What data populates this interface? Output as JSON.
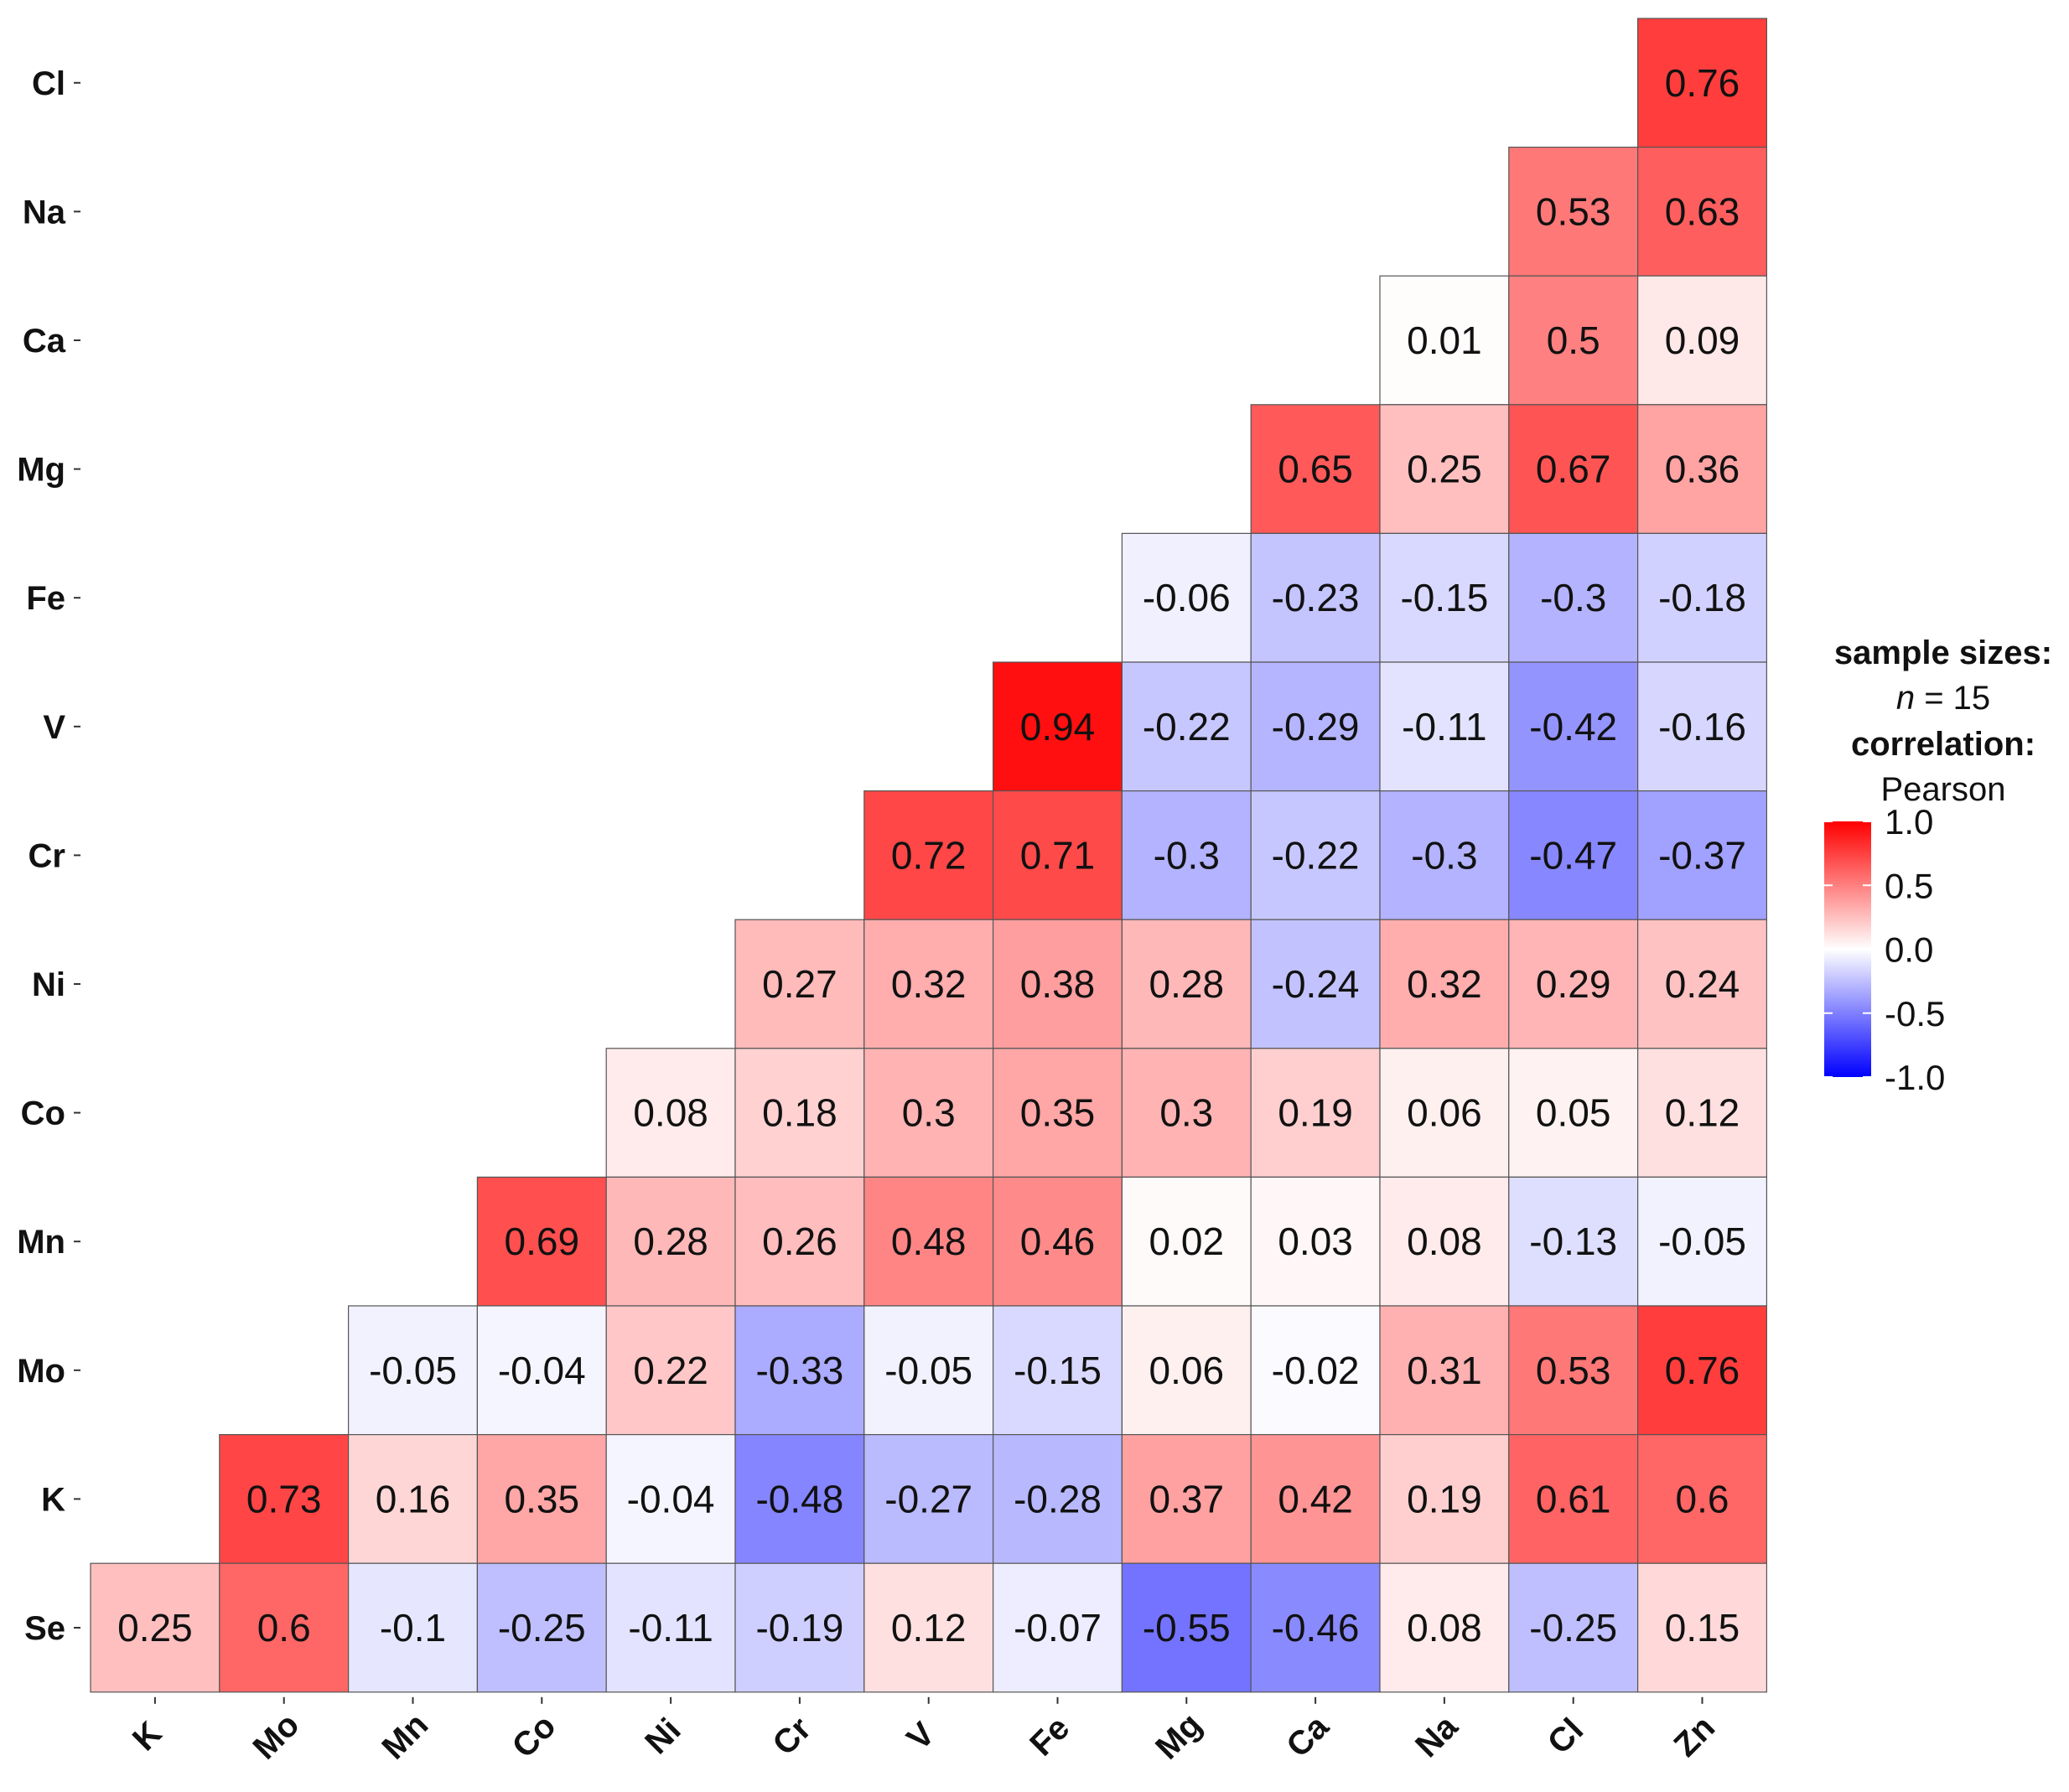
{
  "chart_data": {
    "type": "heatmap",
    "rows": [
      "Cl",
      "Na",
      "Ca",
      "Mg",
      "Fe",
      "V",
      "Cr",
      "Ni",
      "Co",
      "Mn",
      "Mo",
      "K",
      "Se"
    ],
    "cols": [
      "K",
      "Mo",
      "Mn",
      "Co",
      "Ni",
      "Cr",
      "V",
      "Fe",
      "Mg",
      "Ca",
      "Na",
      "Cl",
      "Zn"
    ],
    "values": [
      [
        null,
        null,
        null,
        null,
        null,
        null,
        null,
        null,
        null,
        null,
        null,
        null,
        0.76
      ],
      [
        null,
        null,
        null,
        null,
        null,
        null,
        null,
        null,
        null,
        null,
        null,
        0.53,
        0.63
      ],
      [
        null,
        null,
        null,
        null,
        null,
        null,
        null,
        null,
        null,
        null,
        0.01,
        0.5,
        0.09
      ],
      [
        null,
        null,
        null,
        null,
        null,
        null,
        null,
        null,
        null,
        0.65,
        0.25,
        0.67,
        0.36
      ],
      [
        null,
        null,
        null,
        null,
        null,
        null,
        null,
        null,
        -0.06,
        -0.23,
        -0.15,
        -0.3,
        -0.18
      ],
      [
        null,
        null,
        null,
        null,
        null,
        null,
        null,
        0.94,
        -0.22,
        -0.29,
        -0.11,
        -0.42,
        -0.16
      ],
      [
        null,
        null,
        null,
        null,
        null,
        null,
        0.72,
        0.71,
        -0.3,
        -0.22,
        -0.3,
        -0.47,
        -0.37
      ],
      [
        null,
        null,
        null,
        null,
        null,
        0.27,
        0.32,
        0.38,
        0.28,
        -0.24,
        0.32,
        0.29,
        0.24
      ],
      [
        null,
        null,
        null,
        null,
        0.08,
        0.18,
        0.3,
        0.35,
        0.3,
        0.19,
        0.06,
        0.05,
        0.12
      ],
      [
        null,
        null,
        null,
        0.69,
        0.28,
        0.26,
        0.48,
        0.46,
        0.02,
        0.03,
        0.08,
        -0.13,
        -0.05
      ],
      [
        null,
        null,
        -0.05,
        -0.04,
        0.22,
        -0.33,
        -0.05,
        -0.15,
        0.06,
        -0.02,
        0.31,
        0.53,
        0.76
      ],
      [
        null,
        0.73,
        0.16,
        0.35,
        -0.04,
        -0.48,
        -0.27,
        -0.28,
        0.37,
        0.42,
        0.19,
        0.61,
        0.6
      ],
      [
        0.25,
        0.6,
        -0.1,
        -0.25,
        -0.11,
        -0.19,
        0.12,
        -0.07,
        -0.55,
        -0.46,
        0.08,
        -0.25,
        0.15
      ]
    ],
    "labels": [
      [
        null,
        null,
        null,
        null,
        null,
        null,
        null,
        null,
        null,
        null,
        null,
        null,
        "0.76"
      ],
      [
        null,
        null,
        null,
        null,
        null,
        null,
        null,
        null,
        null,
        null,
        null,
        "0.53",
        "0.63"
      ],
      [
        null,
        null,
        null,
        null,
        null,
        null,
        null,
        null,
        null,
        null,
        "0.01",
        "0.5",
        "0.09"
      ],
      [
        null,
        null,
        null,
        null,
        null,
        null,
        null,
        null,
        null,
        "0.65",
        "0.25",
        "0.67",
        "0.36"
      ],
      [
        null,
        null,
        null,
        null,
        null,
        null,
        null,
        null,
        "-0.06",
        "-0.23",
        "-0.15",
        "-0.3",
        "-0.18"
      ],
      [
        null,
        null,
        null,
        null,
        null,
        null,
        null,
        "0.94",
        "-0.22",
        "-0.29",
        "-0.11",
        "-0.42",
        "-0.16"
      ],
      [
        null,
        null,
        null,
        null,
        null,
        null,
        "0.72",
        "0.71",
        "-0.3",
        "-0.22",
        "-0.3",
        "-0.47",
        "-0.37"
      ],
      [
        null,
        null,
        null,
        null,
        null,
        "0.27",
        "0.32",
        "0.38",
        "0.28",
        "-0.24",
        "0.32",
        "0.29",
        "0.24"
      ],
      [
        null,
        null,
        null,
        null,
        "0.08",
        "0.18",
        "0.3",
        "0.35",
        "0.3",
        "0.19",
        "0.06",
        "0.05",
        "0.12"
      ],
      [
        null,
        null,
        null,
        "0.69",
        "0.28",
        "0.26",
        "0.48",
        "0.46",
        "0.02",
        "0.03",
        "0.08",
        "-0.13",
        "-0.05"
      ],
      [
        null,
        null,
        "-0.05",
        "-0.04",
        "0.22",
        "-0.33",
        "-0.05",
        "-0.15",
        "0.06",
        "-0.02",
        "0.31",
        "0.53",
        "0.76"
      ],
      [
        null,
        "0.73",
        "0.16",
        "0.35",
        "-0.04",
        "-0.48",
        "-0.27",
        "-0.28",
        "0.37",
        "0.42",
        "0.19",
        "0.61",
        "0.6"
      ],
      [
        "0.25",
        "0.6",
        "-0.1",
        "-0.25",
        "-0.11",
        "-0.19",
        "0.12",
        "-0.07",
        "-0.55",
        "-0.46",
        "0.08",
        "-0.25",
        "0.15"
      ]
    ],
    "color_scale": {
      "low": "#0000ff",
      "mid": "#ffffff",
      "high": "#ff0000",
      "limits": [
        -1.0,
        1.0
      ]
    },
    "legend": {
      "heading_1": "sample sizes:",
      "n_symbol": "n",
      "n_text": " = 15",
      "heading_2": "correlation:",
      "method": "Pearson",
      "ticks": [
        "1.0",
        "0.5",
        "0.0",
        "-0.5",
        "-1.0"
      ],
      "tick_values": [
        1.0,
        0.5,
        0.0,
        -0.5,
        -1.0
      ],
      "position": "right"
    }
  }
}
